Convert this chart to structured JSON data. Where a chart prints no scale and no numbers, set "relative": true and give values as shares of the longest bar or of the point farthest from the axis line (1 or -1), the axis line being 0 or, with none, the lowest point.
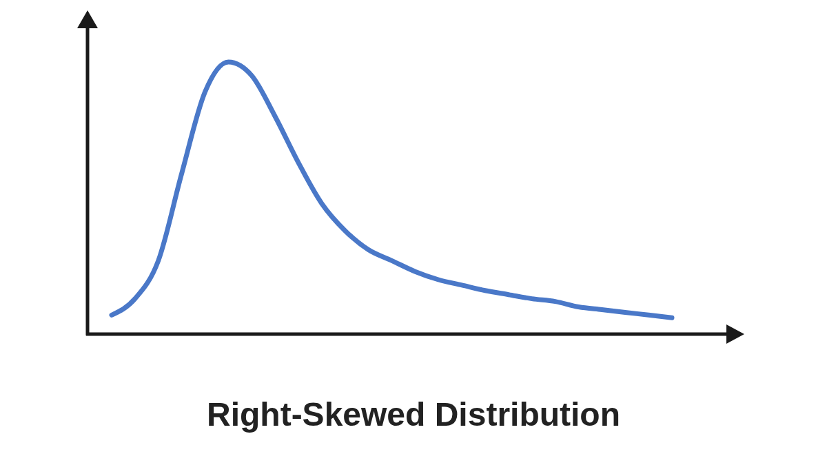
{
  "chart_data": {
    "type": "line",
    "title": "Right-Skewed Distribution",
    "relative": true,
    "categories": [
      null,
      null,
      null,
      null,
      null,
      null,
      null,
      null,
      null,
      null,
      null,
      null,
      null,
      null,
      null,
      null,
      null,
      null,
      null,
      null,
      null,
      null,
      null,
      null,
      null
    ],
    "series": [
      {
        "color": "#4a78c8",
        "values": [
          0.07,
          0.13,
          0.27,
          0.59,
          0.89,
          1,
          0.95,
          0.8,
          0.63,
          0.48,
          0.38,
          0.31,
          0.27,
          0.23,
          0.2,
          0.18,
          0.16,
          0.145,
          0.13,
          0.12,
          0.1,
          0.09,
          0.08,
          0.07,
          0.06
        ]
      }
    ]
  }
}
